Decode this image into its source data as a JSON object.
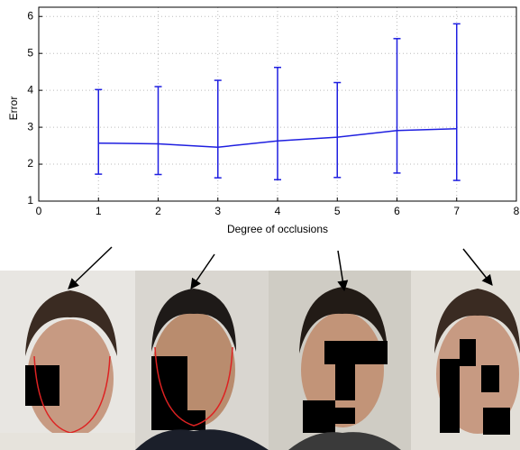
{
  "chart_data": {
    "type": "line",
    "x_label": "Degree of occlusions",
    "y_label": "Error",
    "x": [
      1,
      2,
      3,
      4,
      5,
      6,
      7
    ],
    "series": [
      {
        "color": "#1f1fe0",
        "values": [
          2.57,
          2.55,
          2.46,
          2.63,
          2.73,
          2.91,
          2.96
        ],
        "lower": [
          1.73,
          1.72,
          1.63,
          1.58,
          1.64,
          1.76,
          1.56
        ],
        "upper": [
          4.02,
          4.1,
          4.27,
          4.62,
          4.21,
          5.4,
          5.8
        ]
      }
    ],
    "xlim": [
      0,
      8
    ],
    "xticks": [
      0,
      1,
      2,
      3,
      4,
      5,
      6,
      7,
      8
    ],
    "ylim": [
      1,
      6.25
    ],
    "yticks": [
      1,
      2,
      3,
      4,
      5,
      6
    ],
    "grid": true
  }
}
